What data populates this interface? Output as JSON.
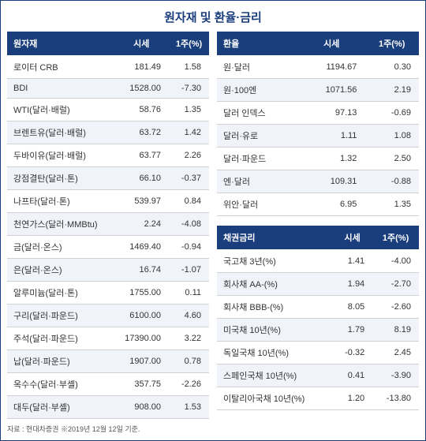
{
  "title": "원자재 및 환율·금리",
  "source": "자료 : 현대차증권 ※2019년 12월 12일 기준.",
  "tables": {
    "commodities": {
      "headers": [
        "원자재",
        "시세",
        "1주(%)"
      ],
      "rows": [
        [
          "로이터 CRB",
          "181.49",
          "1.58"
        ],
        [
          "BDI",
          "1528.00",
          "-7.30"
        ],
        [
          "WTI(달러·배럴)",
          "58.76",
          "1.35"
        ],
        [
          "브렌트유(달러·배럴)",
          "63.72",
          "1.42"
        ],
        [
          "두바이유(달러·배럴)",
          "63.77",
          "2.26"
        ],
        [
          "강점결탄(달러·톤)",
          "66.10",
          "-0.37"
        ],
        [
          "나프타(달러·톤)",
          "539.97",
          "0.84"
        ],
        [
          "천연가스(달러·MMBtu)",
          "2.24",
          "-4.08"
        ],
        [
          "금(달러·온스)",
          "1469.40",
          "-0.94"
        ],
        [
          "은(달러·온스)",
          "16.74",
          "-1.07"
        ],
        [
          "알루미늄(달러·톤)",
          "1755.00",
          "0.11"
        ],
        [
          "구리(달러·파운드)",
          "6100.00",
          "4.60"
        ],
        [
          "주석(달러·파운드)",
          "17390.00",
          "3.22"
        ],
        [
          "납(달러·파운드)",
          "1907.00",
          "0.78"
        ],
        [
          "옥수수(달러·부셸)",
          "357.75",
          "-2.26"
        ],
        [
          "대두(달러·부셸)",
          "908.00",
          "1.53"
        ]
      ]
    },
    "fx": {
      "headers": [
        "환율",
        "시세",
        "1주(%)"
      ],
      "rows": [
        [
          "원·달러",
          "1194.67",
          "0.30"
        ],
        [
          "원·100엔",
          "1071.56",
          "2.19"
        ],
        [
          "달러 인덱스",
          "97.13",
          "-0.69"
        ],
        [
          "달러·유로",
          "1.11",
          "1.08"
        ],
        [
          "달러·파운드",
          "1.32",
          "2.50"
        ],
        [
          "엔·달러",
          "109.31",
          "-0.88"
        ],
        [
          "위안·달러",
          "6.95",
          "1.35"
        ]
      ]
    },
    "bonds": {
      "headers": [
        "채권금리",
        "시세",
        "1주(%)"
      ],
      "rows": [
        [
          "국고채 3년(%)",
          "1.41",
          "-4.00"
        ],
        [
          "회사채 AA-(%)",
          "1.94",
          "-2.70"
        ],
        [
          "회사채 BBB-(%)",
          "8.05",
          "-2.60"
        ],
        [
          "미국채 10년(%)",
          "1.79",
          "8.19"
        ],
        [
          "독일국채 10년(%)",
          "-0.32",
          "2.45"
        ],
        [
          "스페인국채 10년(%)",
          "0.41",
          "-3.90"
        ],
        [
          "이탈리아국채 10년(%)",
          "1.20",
          "-13.80"
        ]
      ]
    }
  },
  "colors": {
    "header_bg": "#1a3d7c",
    "header_fg": "#ffffff",
    "row_alt_bg": "#f0f4fa",
    "border": "#d0d0d0"
  }
}
